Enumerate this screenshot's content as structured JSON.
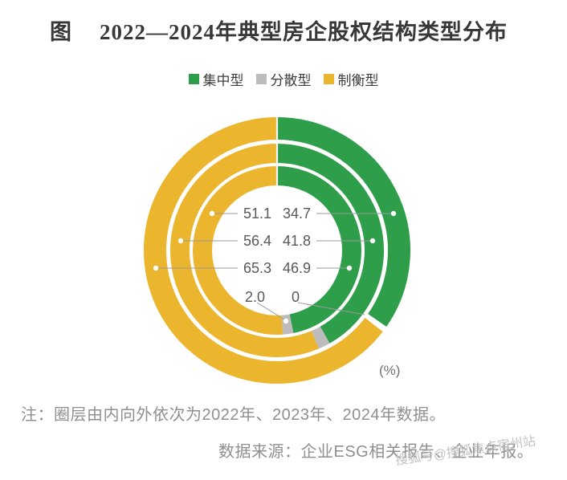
{
  "title": {
    "prefix": "图",
    "text": "2022—2024年典型房企股权结构类型分布"
  },
  "legend": [
    {
      "key": "concentrated",
      "label": "集中型",
      "color": "#2E9E4A"
    },
    {
      "key": "dispersed",
      "label": "分散型",
      "color": "#BCBCBC"
    },
    {
      "key": "balanced",
      "label": "制衡型",
      "color": "#ECB52E"
    }
  ],
  "chart_data": {
    "type": "donut",
    "title": "2022—2024年典型房企股权结构类型分布",
    "unit": "(%)",
    "legend_position": "top",
    "ring_order_note": "inner to outer rings = 2022, 2023, 2024",
    "series": [
      {
        "year": "2022",
        "ring": "inner",
        "values": {
          "concentrated": 46.9,
          "dispersed": 2.0,
          "balanced": 51.1
        }
      },
      {
        "year": "2023",
        "ring": "middle",
        "values": {
          "concentrated": 41.8,
          "balanced": 56.4
        }
      },
      {
        "year": "2024",
        "ring": "outer",
        "values": {
          "concentrated": 34.7,
          "dispersed": 0,
          "balanced": 65.3
        }
      }
    ],
    "center_labels": {
      "left_column": [
        "51.1",
        "56.4",
        "65.3",
        "2.0"
      ],
      "right_column": [
        "34.7",
        "41.8",
        "46.9",
        "0"
      ]
    },
    "colors": {
      "concentrated": "#2E9E4A",
      "dispersed": "#BCBCBC",
      "balanced": "#ECB52E"
    }
  },
  "note": "注：圈层由内向外依次为2022年、2023年、2024年数据。",
  "source": "数据来源：企业ESG相关报告、企业年报。",
  "watermark": "搜狐号@搜狐焦点宿州站"
}
